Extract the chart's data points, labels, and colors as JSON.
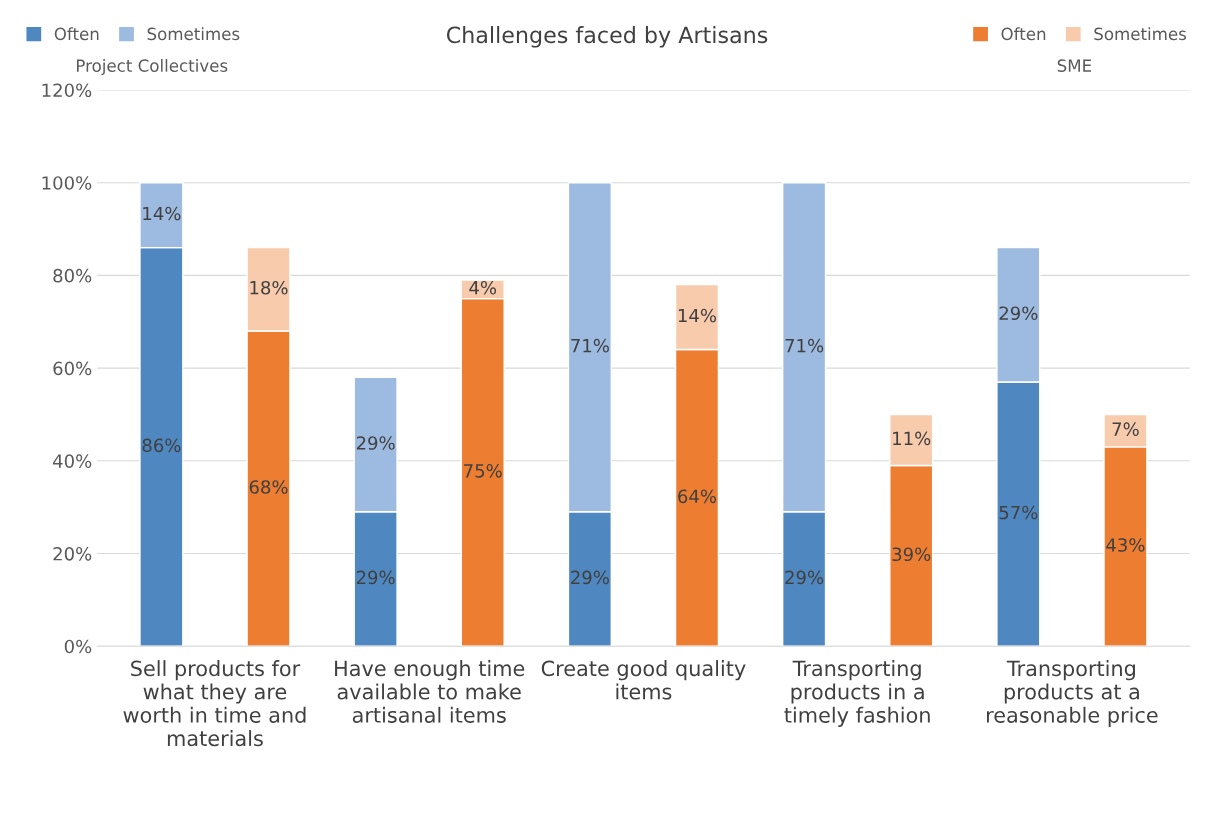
{
  "chart_data": {
    "type": "bar",
    "title": "Challenges faced by Artisans",
    "categories": [
      "Sell products for\nwhat they are\nworth in time and\nmaterials",
      null,
      "Have enough time\navailable to make\nartisanal items",
      null,
      "Create good quality\nitems",
      null,
      "Transporting\nproducts in a\ntimely fashion",
      null,
      "Transporting\nproducts at a\nreasonable price",
      null
    ],
    "stacked": true,
    "annotations": [
      "Project Collectives",
      "SME"
    ],
    "series": [
      {
        "name": "Often",
        "color": "#4f87c0",
        "values": [
          86,
          null,
          29,
          null,
          29,
          null,
          29,
          null,
          57,
          null
        ],
        "value_labels": [
          "86%",
          null,
          "29%",
          null,
          "29%",
          null,
          "29%",
          null,
          "57%",
          null
        ]
      },
      {
        "name": "Sometimes",
        "color": "#9dbbe1",
        "values": [
          14,
          null,
          29,
          null,
          71,
          null,
          71,
          null,
          29,
          null
        ],
        "value_labels": [
          "14%",
          null,
          "29%",
          null,
          "71%",
          null,
          "71%",
          null,
          "29%",
          null
        ]
      },
      {
        "name": "Often",
        "color": "#ed7d31",
        "values": [
          null,
          68,
          null,
          75,
          null,
          64,
          null,
          39,
          null,
          43
        ],
        "value_labels": [
          null,
          "68%",
          null,
          "75%",
          null,
          "64%",
          null,
          "39%",
          null,
          "43%"
        ]
      },
      {
        "name": "Sometimes",
        "color": "#f8cbad",
        "values": [
          null,
          18,
          null,
          4,
          null,
          14,
          null,
          11,
          null,
          7
        ],
        "value_labels": [
          null,
          "18%",
          null,
          "4%",
          null,
          "14%",
          null,
          "11%",
          null,
          "7%"
        ]
      }
    ],
    "ylim": [
      0,
      120
    ],
    "yticks": [
      {
        "value": 0,
        "label": "0%"
      },
      {
        "value": 20,
        "label": "20%"
      },
      {
        "value": 40,
        "label": "40%"
      },
      {
        "value": 60,
        "label": "60%"
      },
      {
        "value": 80,
        "label": "80%"
      },
      {
        "value": 100,
        "label": "100%"
      },
      {
        "value": 120,
        "label": "120%"
      }
    ],
    "grid": "y",
    "legend": "top"
  }
}
